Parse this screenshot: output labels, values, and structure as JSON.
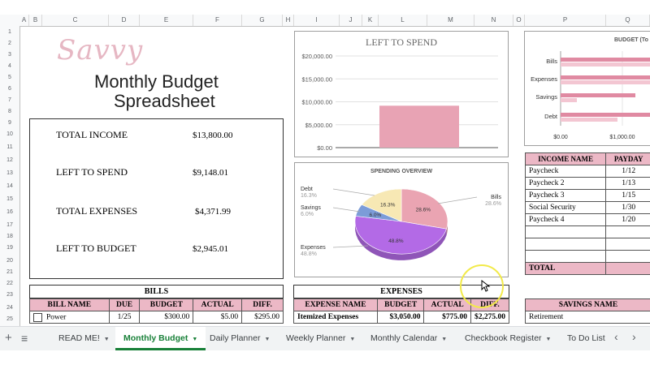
{
  "columns": [
    "A",
    "B",
    "C",
    "D",
    "E",
    "F",
    "G",
    "H",
    "I",
    "J",
    "K",
    "L",
    "M",
    "N",
    "O",
    "P",
    "Q"
  ],
  "rows": [
    "1",
    "2",
    "3",
    "4",
    "5",
    "6",
    "7",
    "8",
    "9",
    "10",
    "11",
    "12",
    "13",
    "14",
    "15",
    "16",
    "17",
    "18",
    "19",
    "20",
    "21",
    "22",
    "23",
    "24",
    "25"
  ],
  "header": {
    "script_title": "Savvy",
    "title_line1": "Monthly Budget",
    "title_line2": "Spreadsheet"
  },
  "summary": [
    {
      "label": "TOTAL INCOME",
      "value": "$13,800.00"
    },
    {
      "label": "LEFT TO SPEND",
      "value": "$9,148.01"
    },
    {
      "label": "TOTAL EXPENSES",
      "value": "$4,371.99"
    },
    {
      "label": "LEFT TO BUDGET",
      "value": "$2,945.01"
    }
  ],
  "left_chart": {
    "title": "LEFT TO SPEND",
    "color": "#e8a3b4",
    "chart_data": {
      "type": "bar",
      "title": "LEFT TO SPEND",
      "categories": [
        ""
      ],
      "values": [
        9148.01
      ],
      "ylim": [
        0,
        20000
      ],
      "yticks": [
        "$0.00",
        "$5,000.00",
        "$10,000.00",
        "$15,000.00",
        "$20,000.00"
      ],
      "grid": true
    }
  },
  "pie_chart": {
    "title": "SPENDING OVERVIEW",
    "chart_data": {
      "type": "pie",
      "title": "SPENDING OVERVIEW",
      "slices": [
        {
          "label": "Bills",
          "value": 28.6,
          "pct": "28.6%",
          "color": "#eaa4b2"
        },
        {
          "label": "Expenses",
          "value": 48.8,
          "pct": "48.8%",
          "color": "#b36ae6"
        },
        {
          "label": "Savings",
          "value": 6.0,
          "pct": "6.0%",
          "color": "#7c9cd8"
        },
        {
          "label": "Debt",
          "value": 16.3,
          "pct": "16.3%",
          "color": "#f7e8b4"
        }
      ]
    }
  },
  "budget_chart": {
    "title": "BUDGET (To",
    "chart_data": {
      "type": "bar",
      "title": "BUDGET (To",
      "categories": [
        "Bills",
        "Expenses",
        "Savings",
        "Debt"
      ],
      "xticks": [
        "$0.00",
        "$1,000.00"
      ]
    }
  },
  "bills": {
    "title": "BILLS",
    "headers": [
      "BILL NAME",
      "DUE",
      "BUDGET",
      "ACTUAL",
      "DIFF."
    ],
    "rows": [
      [
        "Power",
        "1/25",
        "$300.00",
        "$5.00",
        "$295.00"
      ]
    ]
  },
  "expenses": {
    "title": "EXPENSES",
    "headers": [
      "EXPENSE NAME",
      "BUDGET",
      "ACTUAL",
      "DIFF."
    ],
    "rows": [
      [
        "Itemized Expenses",
        "$3,050.00",
        "$775.00",
        "$2,275.00"
      ]
    ]
  },
  "income": {
    "headers": [
      "INCOME NAME",
      "PAYDAY"
    ],
    "rows": [
      [
        "Paycheck",
        "1/12"
      ],
      [
        "Paycheck 2",
        "1/13"
      ],
      [
        "Paycheck 3",
        "1/15"
      ],
      [
        "Social Security",
        "1/30"
      ],
      [
        "Paycheck 4",
        "1/20"
      ]
    ],
    "total_label": "TOTAL"
  },
  "savings": {
    "header": "SAVINGS NAME",
    "rows": [
      "Retirement"
    ]
  },
  "tabs": [
    {
      "label": "READ ME!"
    },
    {
      "label": "Monthly Budget"
    },
    {
      "label": "Daily Planner"
    },
    {
      "label": "Weekly Planner"
    },
    {
      "label": "Monthly Calendar"
    },
    {
      "label": "Checkbook Register"
    },
    {
      "label": "To Do List"
    }
  ],
  "icons": {
    "add": "+",
    "all_sheets": "≡",
    "prev": "‹",
    "next": "›",
    "cursor": "arrow-cursor-icon"
  }
}
